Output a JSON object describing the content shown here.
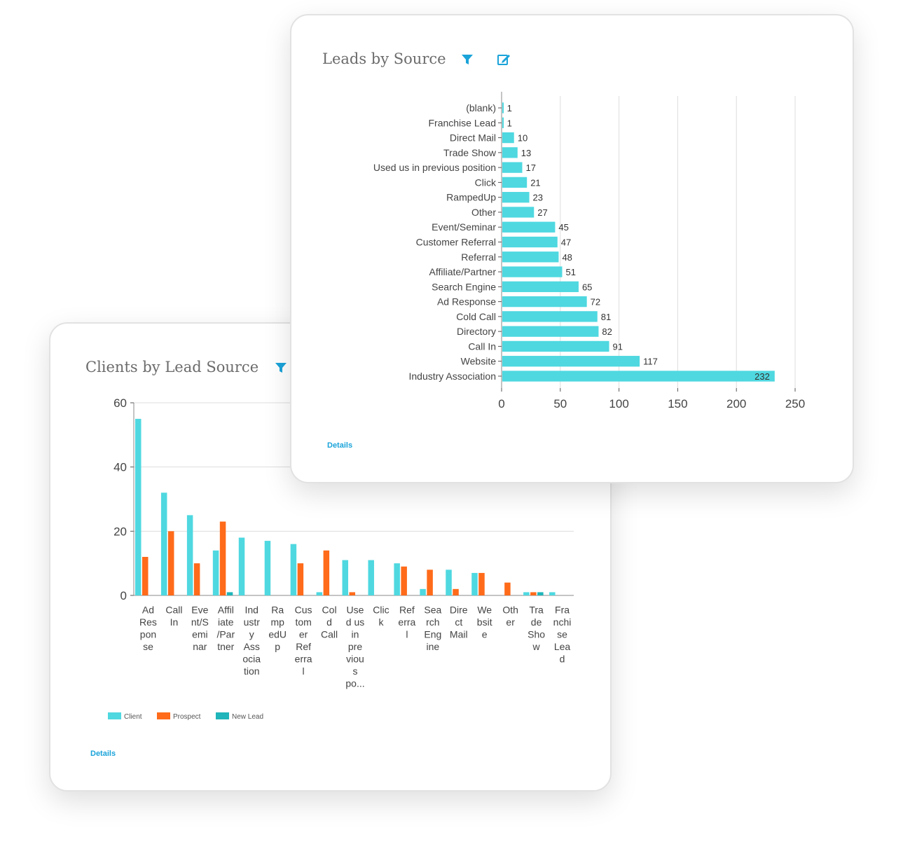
{
  "leads_card": {
    "title": "Leads by Source",
    "details_label": "Details",
    "filter_icon": "filter-icon",
    "edit_icon": "edit-icon"
  },
  "clients_card": {
    "title": "Clients by Lead Source",
    "details_label": "Details",
    "filter_icon": "filter-icon"
  },
  "colors": {
    "bar": "#4fd8e0",
    "client": "#4fd8e0",
    "prospect": "#ff6b1a",
    "new_lead": "#1fb5ba",
    "link": "#1aa3d9",
    "grid": "#dddddd",
    "axis_text": "#444444"
  },
  "chart_data": [
    {
      "type": "bar",
      "orientation": "horizontal",
      "title": "Leads by Source",
      "categories": [
        "(blank)",
        "Franchise Lead",
        "Direct Mail",
        "Trade Show",
        "Used us in previous position",
        "Click",
        "RampedUp",
        "Other",
        "Event/Seminar",
        "Customer Referral",
        "Referral",
        "Affiliate/Partner",
        "Search Engine",
        "Ad Response",
        "Cold Call",
        "Directory",
        "Call In",
        "Website",
        "Industry Association"
      ],
      "values": [
        1,
        1,
        10,
        13,
        17,
        21,
        23,
        27,
        45,
        47,
        48,
        51,
        65,
        72,
        81,
        82,
        91,
        117,
        232
      ],
      "value_labels": [
        "1",
        "1",
        "10",
        "13",
        "17",
        "21",
        "23",
        "27",
        "45",
        "47",
        "48",
        "51",
        "65",
        "72",
        "81",
        "82",
        "91",
        "117",
        "232"
      ],
      "xlim": [
        0,
        250
      ],
      "xticks": [
        0,
        50,
        100,
        150,
        200,
        250
      ],
      "xtick_labels": [
        "0",
        "50",
        "100",
        "150",
        "200",
        "250"
      ],
      "grid": true
    },
    {
      "type": "bar",
      "orientation": "vertical",
      "title": "Clients by Lead Source",
      "categories": [
        [
          "Ad",
          "Res",
          "pon",
          "se"
        ],
        [
          "Call",
          "In"
        ],
        [
          "Eve",
          "nt/S",
          "emi",
          "nar"
        ],
        [
          "Affil",
          "iate",
          "/Par",
          "tner"
        ],
        [
          "Ind",
          "ustr",
          "y",
          "Ass",
          "ocia",
          "tion"
        ],
        [
          "Ra",
          "mp",
          "edU",
          "p"
        ],
        [
          "Cus",
          "tom",
          "er",
          "Ref",
          "erra",
          "l"
        ],
        [
          "Col",
          "d",
          "Call"
        ],
        [
          "Use",
          "d us",
          "in",
          "pre",
          "viou",
          "s",
          "po..."
        ],
        [
          "Clic",
          "k"
        ],
        [
          "Ref",
          "erra",
          "l"
        ],
        [
          "Sea",
          "rch",
          "Eng",
          "ine"
        ],
        [
          "Dire",
          "ct",
          "Mail"
        ],
        [
          "We",
          "bsit",
          "e"
        ],
        [
          "Oth",
          "er"
        ],
        [
          "Tra",
          "de",
          "Sho",
          "w"
        ],
        [
          "Fra",
          "nchi",
          "se",
          "Lea",
          "d"
        ]
      ],
      "series": [
        {
          "name": "Client",
          "values": [
            55,
            32,
            25,
            14,
            18,
            17,
            16,
            1,
            11,
            11,
            10,
            2,
            8,
            7,
            0,
            1,
            1
          ]
        },
        {
          "name": "Prospect",
          "values": [
            12,
            20,
            10,
            23,
            0,
            0,
            10,
            14,
            1,
            0,
            9,
            8,
            2,
            7,
            4,
            1,
            0
          ]
        },
        {
          "name": "New Lead",
          "values": [
            0,
            0,
            0,
            1,
            0,
            0,
            0,
            0,
            0,
            0,
            0,
            0,
            0,
            0,
            0,
            1,
            0
          ]
        }
      ],
      "ylim": [
        0,
        60
      ],
      "yticks": [
        0,
        20,
        40,
        60
      ],
      "ytick_labels": [
        "0",
        "20",
        "40",
        "60"
      ],
      "legend_position": "bottom-left",
      "grid": true
    }
  ]
}
